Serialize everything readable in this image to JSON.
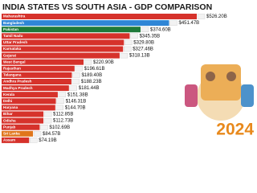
{
  "chart_data": {
    "type": "bar",
    "orientation": "horizontal",
    "title": "INDIA STATES VS SOUTH ASIA - GDP COMPARISON",
    "annotation": "2024",
    "categories": [
      "Maharashtra",
      "Bangladesh",
      "Pakistan",
      "Tamil Nadu",
      "Uttar Pradesh",
      "Karnataka",
      "Gujarat",
      "West Bengal",
      "Rajasthan",
      "Telangana",
      "Andhra Pradesh",
      "Madhya Pradesh",
      "Kerala",
      "Delhi",
      "Haryana",
      "Bihar",
      "Odisha",
      "Punjab",
      "Sri Lanka",
      "Assam"
    ],
    "values": [
      526.2,
      451.47,
      374.6,
      345.35,
      329.8,
      327.46,
      318.13,
      220.9,
      196.61,
      189.4,
      188.23,
      181.44,
      151.38,
      146.31,
      144.7,
      112.85,
      112.73,
      102.69,
      84.57,
      74.19
    ],
    "value_labels": [
      "$526.20B",
      "$451.47B",
      "$374.60B",
      "$345.35B",
      "$329.80B",
      "$327.46B",
      "$318.13B",
      "$220.90B",
      "$196.61B",
      "$189.40B",
      "$188.23B",
      "$181.44B",
      "$151.38B",
      "$146.31B",
      "$144.70B",
      "$112.85B",
      "$112.73B",
      "$102.69B",
      "$84.57B",
      "$74.19B"
    ],
    "colors": [
      "#d6322b",
      "#2f86d6",
      "#1f7a3a",
      "#d6322b",
      "#d6322b",
      "#d6322b",
      "#d6322b",
      "#d6322b",
      "#d6322b",
      "#d6322b",
      "#d6322b",
      "#d6322b",
      "#d6322b",
      "#d6322b",
      "#d6322b",
      "#d6322b",
      "#d6322b",
      "#d6322b",
      "#e0761c",
      "#d6322b"
    ]
  }
}
